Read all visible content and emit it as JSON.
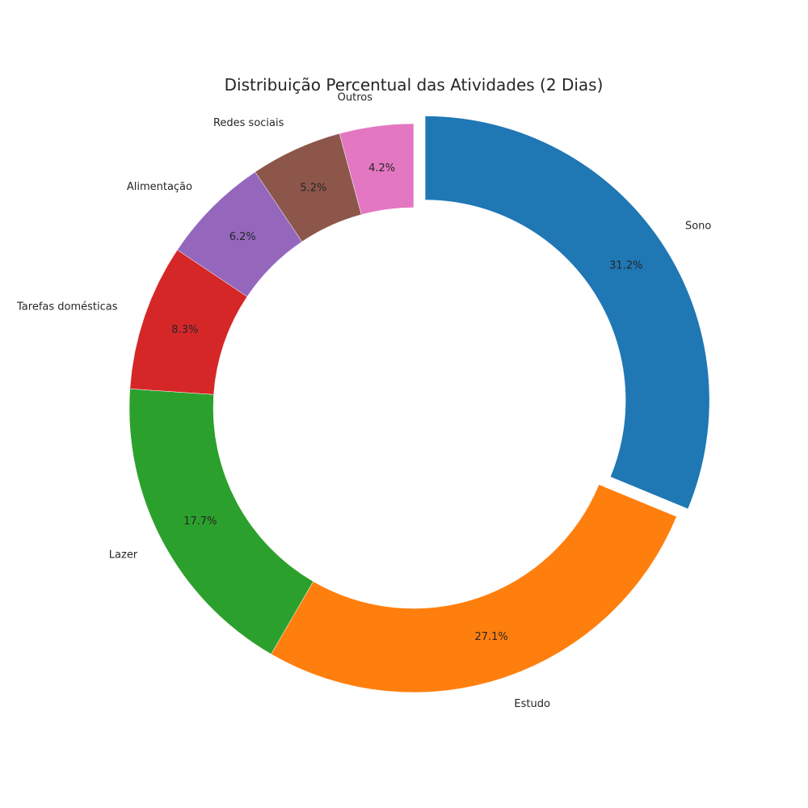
{
  "chart_data": {
    "type": "pie",
    "variant": "donut",
    "title": "Distribuição Percentual das Atividades (2 Dias)",
    "start_angle_deg": 90,
    "direction": "clockwise",
    "slices": [
      {
        "label": "Sono",
        "value": 31.2,
        "pct_label": "31.2%",
        "color": "#1f77b4",
        "exploded": true
      },
      {
        "label": "Estudo",
        "value": 27.1,
        "pct_label": "27.1%",
        "color": "#ff7f0e",
        "exploded": false
      },
      {
        "label": "Lazer",
        "value": 17.7,
        "pct_label": "17.7%",
        "color": "#2ca02c",
        "exploded": false
      },
      {
        "label": "Tarefas domésticas",
        "value": 8.3,
        "pct_label": "8.3%",
        "color": "#d62728",
        "exploded": false
      },
      {
        "label": "Alimentação",
        "value": 6.2,
        "pct_label": "6.2%",
        "color": "#9467bd",
        "exploded": false
      },
      {
        "label": "Redes sociais",
        "value": 5.2,
        "pct_label": "5.2%",
        "color": "#8c564b",
        "exploded": false
      },
      {
        "label": "Outros",
        "value": 4.2,
        "pct_label": "4.2%",
        "color": "#e377c2",
        "exploded": false
      }
    ]
  }
}
